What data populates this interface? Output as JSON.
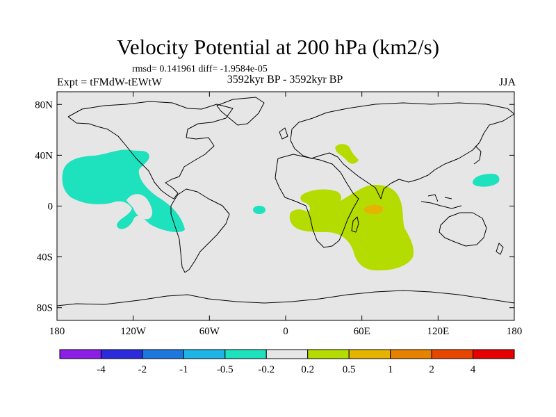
{
  "title": "Velocity Potential at 200 hPa (km2/s)",
  "stats_line": "rmsd= 0.141961  diff= -1.9584e-05",
  "left_label": "Expt = tFMdW-tEWtW",
  "center_label": "3592kyr BP - 3592kyr BP",
  "right_label": "JJA",
  "map": {
    "lon_range": [
      -180,
      180
    ],
    "lat_range": [
      -90,
      90
    ],
    "background_color": "#e6e6e6",
    "x_ticks": [
      {
        "value": -180,
        "label": "180"
      },
      {
        "value": -120,
        "label": "120W"
      },
      {
        "value": -60,
        "label": "60W"
      },
      {
        "value": 0,
        "label": "0"
      },
      {
        "value": 60,
        "label": "60E"
      },
      {
        "value": 120,
        "label": "120E"
      },
      {
        "value": 180,
        "label": "180"
      }
    ],
    "y_ticks": [
      {
        "value": 80,
        "label": "80N"
      },
      {
        "value": 40,
        "label": "40N"
      },
      {
        "value": 0,
        "label": "0"
      },
      {
        "value": -40,
        "label": "40S"
      },
      {
        "value": -80,
        "label": "80S"
      }
    ]
  },
  "colorbar": {
    "colors": [
      "#8c1ee6",
      "#2b2bdc",
      "#1c78dc",
      "#1eb4e6",
      "#1ee1be",
      "#e6e6e6",
      "#b4dc00",
      "#e6b400",
      "#e68200",
      "#e64600",
      "#e60000"
    ],
    "labels": [
      "-4",
      "-2",
      "-1",
      "-0.5",
      "-0.2",
      "0.2",
      "0.5",
      "1",
      "2",
      "4"
    ]
  }
}
